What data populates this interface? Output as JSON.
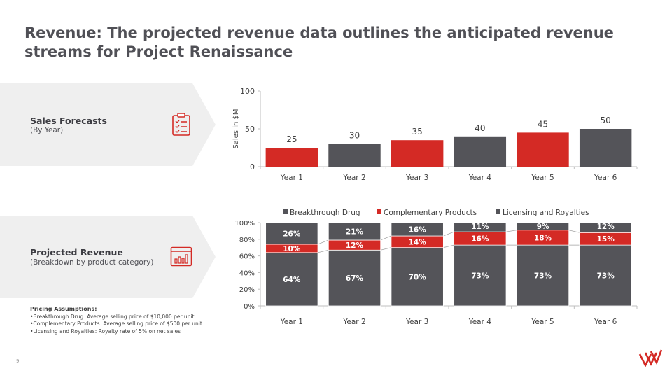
{
  "title": "Revenue: The projected revenue data outlines the anticipated revenue streams for Project Renaissance",
  "page_number": "9",
  "colors": {
    "accent_red": "#d42a25",
    "dark_gray": "#545459",
    "banner_gray": "#efefef",
    "axis": "#bfbfbf"
  },
  "banners": [
    {
      "title": "Sales Forecasts",
      "subtitle": "(By Year)",
      "icon": "checklist-icon"
    },
    {
      "title": "Projected Revenue",
      "subtitle": "(Breakdown by product category)",
      "icon": "bar-chart-window-icon"
    }
  ],
  "pricing": {
    "heading": "Pricing Assumptions:",
    "items": [
      "•Breakthrough Drug: Average selling price of $10,000 per unit",
      "•Complementary Products: Average selling price of $500 per unit",
      "•Licensing and Royalties: Royalty rate of 5% on net sales"
    ]
  },
  "chart_data": [
    {
      "type": "bar",
      "categories": [
        "Year 1",
        "Year 2",
        "Year 3",
        "Year 4",
        "Year 5",
        "Year 6"
      ],
      "values": [
        25,
        30,
        35,
        40,
        45,
        50
      ],
      "bar_colors": [
        "#d42a25",
        "#545459",
        "#d42a25",
        "#545459",
        "#d42a25",
        "#545459"
      ],
      "data_labels": [
        "25",
        "30",
        "35",
        "40",
        "45",
        "50"
      ],
      "ylabel": "Sales in $M",
      "ylim": [
        0,
        100
      ],
      "yticks": [
        0,
        50,
        100
      ],
      "ytick_labels": [
        "0",
        "50",
        "100"
      ],
      "grid": false
    },
    {
      "type": "bar",
      "stacked": true,
      "percent": true,
      "categories": [
        "Year 1",
        "Year 2",
        "Year 3",
        "Year 4",
        "Year 5",
        "Year 6"
      ],
      "series": [
        {
          "name": "Breakthrough Drug",
          "color": "#545459",
          "values": [
            64,
            67,
            70,
            73,
            73,
            73
          ],
          "labels": [
            "64%",
            "67%",
            "70%",
            "73%",
            "73%",
            "73%"
          ]
        },
        {
          "name": "Complementary Products",
          "color": "#d42a25",
          "values": [
            10,
            12,
            14,
            16,
            18,
            15
          ],
          "labels": [
            "10%",
            "12%",
            "14%",
            "16%",
            "18%",
            "15%"
          ]
        },
        {
          "name": "Licensing and Royalties",
          "color": "#545459",
          "values": [
            26,
            21,
            16,
            11,
            9,
            12
          ],
          "labels": [
            "26%",
            "21%",
            "16%",
            "11%",
            "9%",
            "12%"
          ]
        }
      ],
      "ylim": [
        0,
        100
      ],
      "yticks": [
        0,
        20,
        40,
        60,
        80,
        100
      ],
      "ytick_labels": [
        "0%",
        "20%",
        "40%",
        "60%",
        "80%",
        "100%"
      ],
      "legend_position": "top",
      "series_lines": true,
      "grid": false
    }
  ]
}
